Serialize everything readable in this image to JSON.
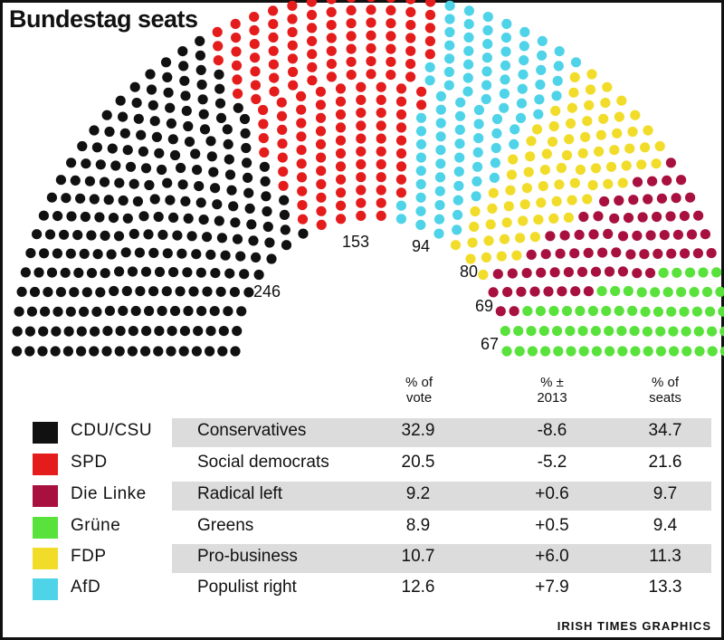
{
  "title": "Bundestag seats",
  "chart_data": {
    "type": "parliament",
    "series": [
      {
        "party": "CDU/CSU",
        "description": "Conservatives",
        "seats": 246,
        "vote_pct": "32.9",
        "change_pct": "-8.6",
        "seats_pct": "34.7",
        "color": "#111111"
      },
      {
        "party": "SPD",
        "description": "Social democrats",
        "seats": 153,
        "vote_pct": "20.5",
        "change_pct": "-5.2",
        "seats_pct": "21.6",
        "color": "#e41c1c"
      },
      {
        "party": "AfD",
        "description": "Populist right",
        "seats": 94,
        "vote_pct": "12.6",
        "change_pct": "+7.9",
        "seats_pct": "13.3",
        "color": "#4fd3e8"
      },
      {
        "party": "FDP",
        "description": "Pro-business",
        "seats": 80,
        "vote_pct": "10.7",
        "change_pct": "+6.0",
        "seats_pct": "11.3",
        "color": "#f2dc2a"
      },
      {
        "party": "Die Linke",
        "description": "Radical left",
        "seats": 69,
        "vote_pct": "9.2",
        "change_pct": "+0.6",
        "seats_pct": "9.7",
        "color": "#a8103f"
      },
      {
        "party": "Grüne",
        "description": "Greens",
        "seats": 67,
        "vote_pct": "8.9",
        "change_pct": "+0.5",
        "seats_pct": "9.4",
        "color": "#5ae23c"
      }
    ]
  },
  "table": {
    "headers": {
      "vote": [
        "% of",
        "vote"
      ],
      "change": [
        "% ±",
        "2013"
      ],
      "seats": [
        "% of",
        "seats"
      ]
    },
    "rows": [
      {
        "party": "CDU/CSU",
        "description": "Conservatives",
        "vote": "32.9",
        "change": "-8.6",
        "seats": "34.7",
        "color": "#111111"
      },
      {
        "party": "SPD",
        "description": "Social democrats",
        "vote": "20.5",
        "change": "-5.2",
        "seats": "21.6",
        "color": "#e41c1c"
      },
      {
        "party": "Die Linke",
        "description": "Radical left",
        "vote": "9.2",
        "change": "+0.6",
        "seats": "9.7",
        "color": "#a8103f"
      },
      {
        "party": "Grüne",
        "description": "Greens",
        "vote": "8.9",
        "change": "+0.5",
        "seats": "9.4",
        "color": "#5ae23c"
      },
      {
        "party": "FDP",
        "description": "Pro-business",
        "vote": "10.7",
        "change": "+6.0",
        "seats": "11.3",
        "color": "#f2dc2a"
      },
      {
        "party": "AfD",
        "description": "Populist right",
        "vote": "12.6",
        "change": "+7.9",
        "seats": "13.3",
        "color": "#4fd3e8"
      }
    ]
  },
  "credit": "IRISH TIMES GRAPHICS"
}
